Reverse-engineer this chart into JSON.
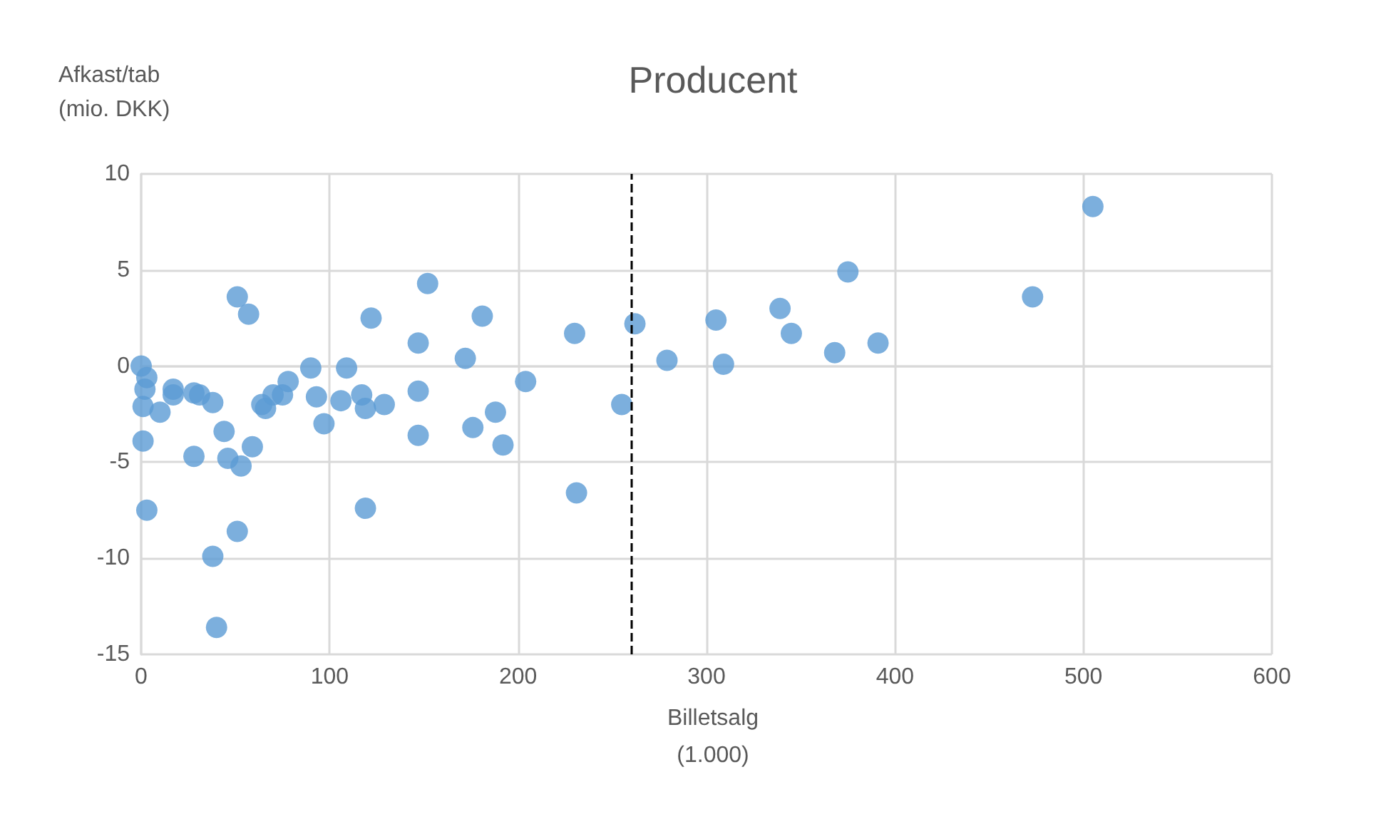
{
  "chart_data": {
    "type": "scatter",
    "title": "Producent",
    "xlabel": "Billetsalg\n(1.000)",
    "ylabel": "Afkast/tab\n(mio. DKK)",
    "xlim": [
      0,
      600
    ],
    "xticks": [
      0,
      100,
      200,
      300,
      400,
      500,
      600
    ],
    "ylim": [
      -15,
      10
    ],
    "yticks": [
      -15,
      -10,
      -5,
      0,
      5,
      10
    ],
    "grid": true,
    "marker": "circle",
    "ref_lines": [
      {
        "axis": "x",
        "value": 260,
        "color": "#000000",
        "line_style": "dashed"
      }
    ],
    "series": [
      {
        "color": "#5b9bd5",
        "x": [
          0,
          3,
          2,
          1,
          10,
          1,
          3,
          17,
          17,
          28,
          31,
          38,
          44,
          28,
          46,
          53,
          59,
          51,
          57,
          51,
          38,
          40,
          64,
          66,
          70,
          75,
          78,
          90,
          93,
          97,
          106,
          109,
          117,
          119,
          129,
          119,
          122,
          147,
          147,
          147,
          152,
          172,
          181,
          176,
          188,
          192,
          204,
          230,
          231,
          255,
          262,
          279,
          305,
          309,
          339,
          345,
          368,
          375,
          391,
          473,
          505
        ],
        "values": [
          0,
          -0.6,
          -1.2,
          -2.1,
          -2.4,
          -3.9,
          -7.5,
          -1.2,
          -1.5,
          -1.4,
          -1.5,
          -1.9,
          -3.4,
          -4.7,
          -4.8,
          -5.2,
          -4.2,
          3.6,
          2.7,
          -8.6,
          -9.9,
          -13.6,
          -2.0,
          -2.2,
          -1.5,
          -1.5,
          -0.8,
          -0.1,
          -1.6,
          -3.0,
          -1.8,
          -0.1,
          -1.5,
          -2.2,
          -2.0,
          -7.4,
          2.5,
          1.2,
          -1.3,
          -3.6,
          4.3,
          0.4,
          2.6,
          -3.2,
          -2.4,
          -4.1,
          -0.8,
          1.7,
          -6.6,
          -2.0,
          2.2,
          0.3,
          2.4,
          0.1,
          3.0,
          1.7,
          0.7,
          4.9,
          1.2,
          3.6,
          8.3
        ]
      }
    ]
  }
}
